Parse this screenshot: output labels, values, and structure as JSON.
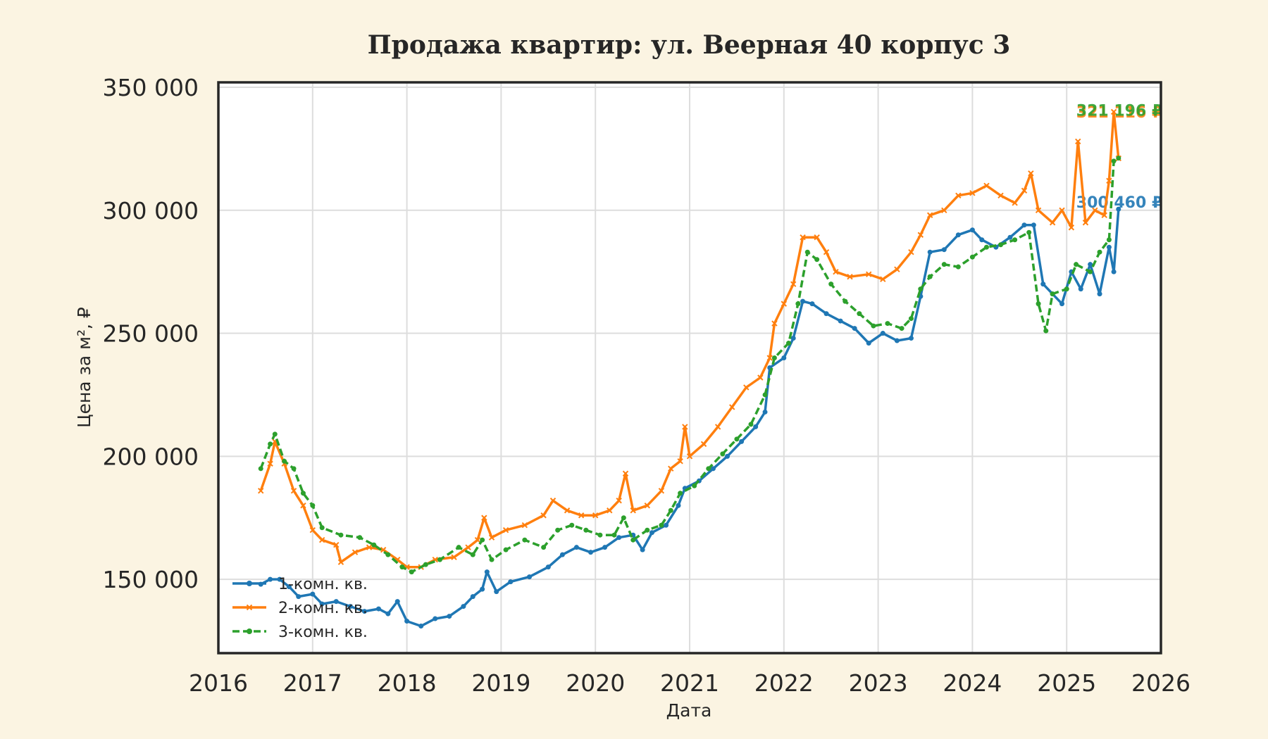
{
  "chart_data": {
    "type": "line",
    "title": "Продажа квартир: ул. Веерная 40 корпус 3",
    "xlabel": "Дата",
    "ylabel": "Цена за м², ₽",
    "xlim": [
      2016.0,
      2026.0
    ],
    "ylim": [
      120000,
      352000
    ],
    "x_ticks": [
      2016,
      2017,
      2018,
      2019,
      2020,
      2021,
      2022,
      2023,
      2024,
      2025,
      2026
    ],
    "x_tick_labels": [
      "2016",
      "2017",
      "2018",
      "2019",
      "2020",
      "2021",
      "2022",
      "2023",
      "2024",
      "2025",
      "2026"
    ],
    "y_ticks": [
      150000,
      200000,
      250000,
      300000,
      350000
    ],
    "y_tick_labels": [
      "150 000",
      "200 000",
      "250 000",
      "300 000",
      "350 000"
    ],
    "grid": true,
    "legend_position": "lower-left",
    "series": [
      {
        "name": "1-комн. кв.",
        "color": "#1f77b4",
        "dash": "solid",
        "marker": "circle",
        "end_label": "300 460 ₽",
        "points": [
          [
            2016.45,
            148000
          ],
          [
            2016.55,
            150000
          ],
          [
            2016.65,
            150000
          ],
          [
            2016.75,
            147000
          ],
          [
            2016.85,
            143000
          ],
          [
            2017.0,
            144000
          ],
          [
            2017.1,
            140000
          ],
          [
            2017.25,
            141000
          ],
          [
            2017.4,
            139000
          ],
          [
            2017.55,
            137000
          ],
          [
            2017.7,
            138000
          ],
          [
            2017.8,
            136000
          ],
          [
            2017.9,
            141000
          ],
          [
            2018.0,
            133000
          ],
          [
            2018.15,
            131000
          ],
          [
            2018.3,
            134000
          ],
          [
            2018.45,
            135000
          ],
          [
            2018.6,
            139000
          ],
          [
            2018.7,
            143000
          ],
          [
            2018.8,
            146000
          ],
          [
            2018.85,
            153000
          ],
          [
            2018.95,
            145000
          ],
          [
            2019.1,
            149000
          ],
          [
            2019.3,
            151000
          ],
          [
            2019.5,
            155000
          ],
          [
            2019.65,
            160000
          ],
          [
            2019.8,
            163000
          ],
          [
            2019.95,
            161000
          ],
          [
            2020.1,
            163000
          ],
          [
            2020.25,
            167000
          ],
          [
            2020.4,
            168000
          ],
          [
            2020.5,
            162000
          ],
          [
            2020.6,
            169000
          ],
          [
            2020.75,
            172000
          ],
          [
            2020.88,
            180000
          ],
          [
            2020.95,
            187000
          ],
          [
            2021.1,
            190000
          ],
          [
            2021.25,
            195000
          ],
          [
            2021.4,
            200000
          ],
          [
            2021.55,
            206000
          ],
          [
            2021.7,
            212000
          ],
          [
            2021.8,
            218000
          ],
          [
            2021.85,
            236000
          ],
          [
            2022.0,
            240000
          ],
          [
            2022.1,
            248000
          ],
          [
            2022.2,
            263000
          ],
          [
            2022.3,
            262000
          ],
          [
            2022.45,
            258000
          ],
          [
            2022.6,
            255000
          ],
          [
            2022.75,
            252000
          ],
          [
            2022.9,
            246000
          ],
          [
            2023.05,
            250000
          ],
          [
            2023.2,
            247000
          ],
          [
            2023.35,
            248000
          ],
          [
            2023.45,
            265000
          ],
          [
            2023.55,
            283000
          ],
          [
            2023.7,
            284000
          ],
          [
            2023.85,
            290000
          ],
          [
            2024.0,
            292000
          ],
          [
            2024.1,
            288000
          ],
          [
            2024.25,
            285000
          ],
          [
            2024.4,
            289000
          ],
          [
            2024.55,
            294000
          ],
          [
            2024.65,
            294000
          ],
          [
            2024.75,
            270000
          ],
          [
            2024.85,
            266000
          ],
          [
            2024.95,
            262000
          ],
          [
            2025.05,
            275000
          ],
          [
            2025.15,
            268000
          ],
          [
            2025.25,
            278000
          ],
          [
            2025.35,
            266000
          ],
          [
            2025.45,
            285000
          ],
          [
            2025.5,
            275000
          ],
          [
            2025.55,
            300460
          ]
        ]
      },
      {
        "name": "2-комн. кв.",
        "color": "#ff7f0e",
        "dash": "solid",
        "marker": "x",
        "end_label": "321 116 ₽",
        "points": [
          [
            2016.45,
            186000
          ],
          [
            2016.55,
            197000
          ],
          [
            2016.6,
            206000
          ],
          [
            2016.7,
            197000
          ],
          [
            2016.8,
            186000
          ],
          [
            2016.9,
            180000
          ],
          [
            2017.0,
            170000
          ],
          [
            2017.1,
            166000
          ],
          [
            2017.25,
            164000
          ],
          [
            2017.3,
            157000
          ],
          [
            2017.45,
            161000
          ],
          [
            2017.6,
            163000
          ],
          [
            2017.75,
            162000
          ],
          [
            2017.9,
            158000
          ],
          [
            2018.0,
            155000
          ],
          [
            2018.15,
            155000
          ],
          [
            2018.3,
            158000
          ],
          [
            2018.5,
            159000
          ],
          [
            2018.65,
            163000
          ],
          [
            2018.75,
            166000
          ],
          [
            2018.82,
            175000
          ],
          [
            2018.9,
            167000
          ],
          [
            2019.05,
            170000
          ],
          [
            2019.25,
            172000
          ],
          [
            2019.45,
            176000
          ],
          [
            2019.55,
            182000
          ],
          [
            2019.7,
            178000
          ],
          [
            2019.85,
            176000
          ],
          [
            2020.0,
            176000
          ],
          [
            2020.15,
            178000
          ],
          [
            2020.25,
            182000
          ],
          [
            2020.32,
            193000
          ],
          [
            2020.4,
            178000
          ],
          [
            2020.55,
            180000
          ],
          [
            2020.7,
            186000
          ],
          [
            2020.8,
            195000
          ],
          [
            2020.9,
            198000
          ],
          [
            2020.95,
            212000
          ],
          [
            2021.0,
            200000
          ],
          [
            2021.15,
            205000
          ],
          [
            2021.3,
            212000
          ],
          [
            2021.45,
            220000
          ],
          [
            2021.6,
            228000
          ],
          [
            2021.75,
            232000
          ],
          [
            2021.85,
            240000
          ],
          [
            2021.9,
            254000
          ],
          [
            2022.0,
            262000
          ],
          [
            2022.1,
            270000
          ],
          [
            2022.2,
            289000
          ],
          [
            2022.35,
            289000
          ],
          [
            2022.45,
            283000
          ],
          [
            2022.55,
            275000
          ],
          [
            2022.7,
            273000
          ],
          [
            2022.9,
            274000
          ],
          [
            2023.05,
            272000
          ],
          [
            2023.2,
            276000
          ],
          [
            2023.35,
            283000
          ],
          [
            2023.45,
            290000
          ],
          [
            2023.55,
            298000
          ],
          [
            2023.7,
            300000
          ],
          [
            2023.85,
            306000
          ],
          [
            2024.0,
            307000
          ],
          [
            2024.15,
            310000
          ],
          [
            2024.3,
            306000
          ],
          [
            2024.45,
            303000
          ],
          [
            2024.55,
            308000
          ],
          [
            2024.62,
            315000
          ],
          [
            2024.7,
            300000
          ],
          [
            2024.85,
            295000
          ],
          [
            2024.95,
            300000
          ],
          [
            2025.05,
            293000
          ],
          [
            2025.12,
            328000
          ],
          [
            2025.2,
            295000
          ],
          [
            2025.3,
            300000
          ],
          [
            2025.4,
            298000
          ],
          [
            2025.45,
            312000
          ],
          [
            2025.5,
            340000
          ],
          [
            2025.55,
            321116
          ]
        ]
      },
      {
        "name": "3-комн. кв.",
        "color": "#2ca02c",
        "dash": "dashed",
        "marker": "circle",
        "end_label": "321 196 ₽",
        "points": [
          [
            2016.45,
            195000
          ],
          [
            2016.55,
            205000
          ],
          [
            2016.6,
            209000
          ],
          [
            2016.7,
            198000
          ],
          [
            2016.8,
            195000
          ],
          [
            2016.9,
            185000
          ],
          [
            2017.0,
            180000
          ],
          [
            2017.1,
            171000
          ],
          [
            2017.3,
            168000
          ],
          [
            2017.5,
            167000
          ],
          [
            2017.65,
            164000
          ],
          [
            2017.8,
            160000
          ],
          [
            2017.95,
            155000
          ],
          [
            2018.05,
            153000
          ],
          [
            2018.2,
            156000
          ],
          [
            2018.35,
            158000
          ],
          [
            2018.55,
            163000
          ],
          [
            2018.7,
            160000
          ],
          [
            2018.8,
            166000
          ],
          [
            2018.9,
            158000
          ],
          [
            2019.05,
            162000
          ],
          [
            2019.25,
            166000
          ],
          [
            2019.45,
            163000
          ],
          [
            2019.6,
            170000
          ],
          [
            2019.75,
            172000
          ],
          [
            2019.9,
            170000
          ],
          [
            2020.05,
            168000
          ],
          [
            2020.2,
            168000
          ],
          [
            2020.3,
            175000
          ],
          [
            2020.4,
            166000
          ],
          [
            2020.55,
            170000
          ],
          [
            2020.7,
            172000
          ],
          [
            2020.8,
            178000
          ],
          [
            2020.9,
            185000
          ],
          [
            2021.05,
            188000
          ],
          [
            2021.2,
            195000
          ],
          [
            2021.35,
            201000
          ],
          [
            2021.5,
            207000
          ],
          [
            2021.65,
            213000
          ],
          [
            2021.8,
            225000
          ],
          [
            2021.9,
            240000
          ],
          [
            2022.05,
            246000
          ],
          [
            2022.15,
            262000
          ],
          [
            2022.25,
            283000
          ],
          [
            2022.35,
            280000
          ],
          [
            2022.5,
            270000
          ],
          [
            2022.65,
            263000
          ],
          [
            2022.8,
            258000
          ],
          [
            2022.95,
            253000
          ],
          [
            2023.1,
            254000
          ],
          [
            2023.25,
            252000
          ],
          [
            2023.35,
            256000
          ],
          [
            2023.45,
            268000
          ],
          [
            2023.55,
            273000
          ],
          [
            2023.7,
            278000
          ],
          [
            2023.85,
            277000
          ],
          [
            2024.0,
            281000
          ],
          [
            2024.15,
            285000
          ],
          [
            2024.3,
            286000
          ],
          [
            2024.45,
            288000
          ],
          [
            2024.6,
            291000
          ],
          [
            2024.7,
            262000
          ],
          [
            2024.78,
            251000
          ],
          [
            2024.85,
            266000
          ],
          [
            2025.0,
            268000
          ],
          [
            2025.1,
            278000
          ],
          [
            2025.25,
            275000
          ],
          [
            2025.35,
            283000
          ],
          [
            2025.45,
            288000
          ],
          [
            2025.5,
            320000
          ],
          [
            2025.55,
            321196
          ]
        ]
      }
    ]
  }
}
